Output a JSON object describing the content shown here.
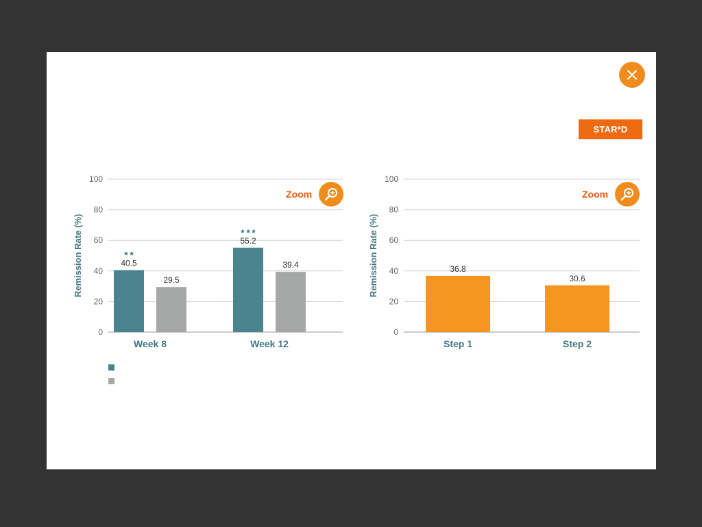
{
  "modal": {
    "close_icon": "close-icon",
    "badge_label": "STAR*D"
  },
  "colors": {
    "teal": "#4a858f",
    "gray": "#a6a8a8",
    "orange": "#f59522",
    "accent": "#f08c1e"
  },
  "zoom_label": "Zoom",
  "zoom_icon": "zoom-in-icon",
  "legend": [
    {
      "label": "",
      "color": "#4a858f"
    },
    {
      "label": "",
      "color": "#a6a8a8"
    }
  ],
  "chart_data": [
    {
      "type": "bar",
      "ylabel": "Remission Rate (%)",
      "ylim": [
        0,
        100
      ],
      "yticks": [
        0,
        20,
        40,
        60,
        80,
        100
      ],
      "grid": true,
      "categories": [
        "Week 8",
        "Week 12"
      ],
      "series": [
        {
          "values": [
            40.5,
            55.2
          ],
          "annotations": [
            "**",
            "***"
          ]
        },
        {
          "values": [
            29.5,
            39.4
          ],
          "annotations": [
            "",
            ""
          ]
        }
      ]
    },
    {
      "type": "bar",
      "ylabel": "Remission Rate (%)",
      "ylim": [
        0,
        100
      ],
      "yticks": [
        0,
        20,
        40,
        60,
        80,
        100
      ],
      "grid": true,
      "categories": [
        "Step 1",
        "Step 2"
      ],
      "series": [
        {
          "values": [
            36.8,
            30.6
          ],
          "annotations": [
            "",
            ""
          ]
        }
      ]
    }
  ]
}
